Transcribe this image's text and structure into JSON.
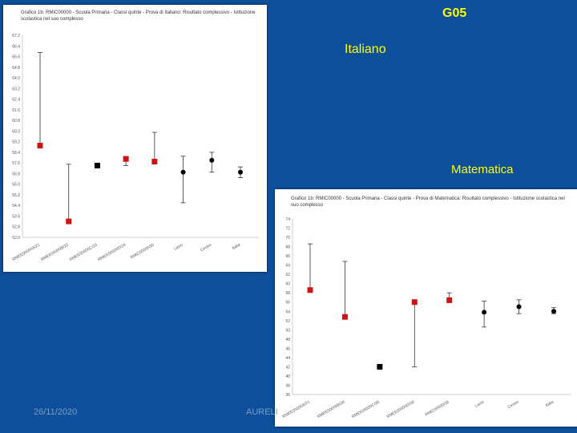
{
  "slide": {
    "code": "G05",
    "label_italiano": "Italiano",
    "label_matematica": "Matematica",
    "footer_date": "26/11/2020",
    "footer_author": "AURELI"
  },
  "colors": {
    "background": "#0d4f9a",
    "label": "#ffff00",
    "school": "#cc1414",
    "institute": "#000000",
    "reference": "#000000"
  },
  "chart_data": [
    {
      "type": "scatter",
      "title": "Grafico 1b: RMIC00000 - Scuola Primaria - Classi quinte - Prova di Italiano: Risultato complessivo - Istituzione scolastica nel suo complesso",
      "categories": [
        "RMEE00000A/21",
        "RMEE00000B/22",
        "RMEE00000C/23",
        "RMEE00000D/24",
        "RMIC00000/25",
        "Lazio",
        "Centro",
        "Italia"
      ],
      "ylim": [
        52.0,
        67.2
      ],
      "yticks": [
        "67.2",
        "66.4",
        "65.6",
        "64.8",
        "64.0",
        "63.2",
        "62.4",
        "61.6",
        "60.8",
        "60.0",
        "59.2",
        "58.4",
        "57.6",
        "56.8",
        "56.0",
        "55.2",
        "54.4",
        "53.6",
        "52.8",
        "52.0"
      ],
      "points": [
        {
          "y": 58.9,
          "low": 58.9,
          "high": 65.9,
          "marker": "red-square"
        },
        {
          "y": 53.2,
          "low": 53.2,
          "high": 57.5,
          "marker": "red-square"
        },
        {
          "y": 57.4,
          "low": 57.4,
          "high": 57.4,
          "marker": "black-square"
        },
        {
          "y": 57.9,
          "low": 57.4,
          "high": 57.9,
          "marker": "red-square"
        },
        {
          "y": 57.7,
          "low": 57.7,
          "high": 59.9,
          "marker": "red-square"
        },
        {
          "y": 56.9,
          "low": 54.6,
          "high": 58.1,
          "marker": "black-dot"
        },
        {
          "y": 57.8,
          "low": 56.9,
          "high": 58.4,
          "marker": "black-dot"
        },
        {
          "y": 56.9,
          "low": 56.5,
          "high": 57.3,
          "marker": "black-dot"
        }
      ]
    },
    {
      "type": "scatter",
      "title": "Grafico 1b: RMIC00000 - Scuola Primaria - Classi quinte - Prova di Matematica: Risultato complessivo - Istituzione scolastica nel suo complesso",
      "categories": [
        "RMEE00000A/21",
        "RMEE00000B/26",
        "RMEE00000C/26",
        "RMEE00000D/26",
        "RMIC00000/26",
        "Lazio",
        "Centro",
        "Italia"
      ],
      "ylim": [
        36,
        74
      ],
      "yticks": [
        "74",
        "72",
        "70",
        "68",
        "66",
        "64",
        "62",
        "60",
        "58",
        "56",
        "54",
        "52",
        "50",
        "48",
        "46",
        "44",
        "42",
        "40",
        "38",
        "36"
      ],
      "points": [
        {
          "y": 58.6,
          "low": 58.6,
          "high": 68.6,
          "marker": "red-square"
        },
        {
          "y": 52.8,
          "low": 52.8,
          "high": 64.8,
          "marker": "red-square"
        },
        {
          "y": 42.0,
          "low": 42.0,
          "high": 42.0,
          "marker": "black-square"
        },
        {
          "y": 56.0,
          "low": 42.0,
          "high": 56.0,
          "marker": "red-square"
        },
        {
          "y": 56.4,
          "low": 56.4,
          "high": 58.0,
          "marker": "red-square"
        },
        {
          "y": 53.8,
          "low": 50.6,
          "high": 56.2,
          "marker": "black-dot"
        },
        {
          "y": 55.0,
          "low": 53.5,
          "high": 56.5,
          "marker": "black-dot"
        },
        {
          "y": 54.0,
          "low": 53.5,
          "high": 54.8,
          "marker": "black-dot"
        }
      ]
    }
  ]
}
